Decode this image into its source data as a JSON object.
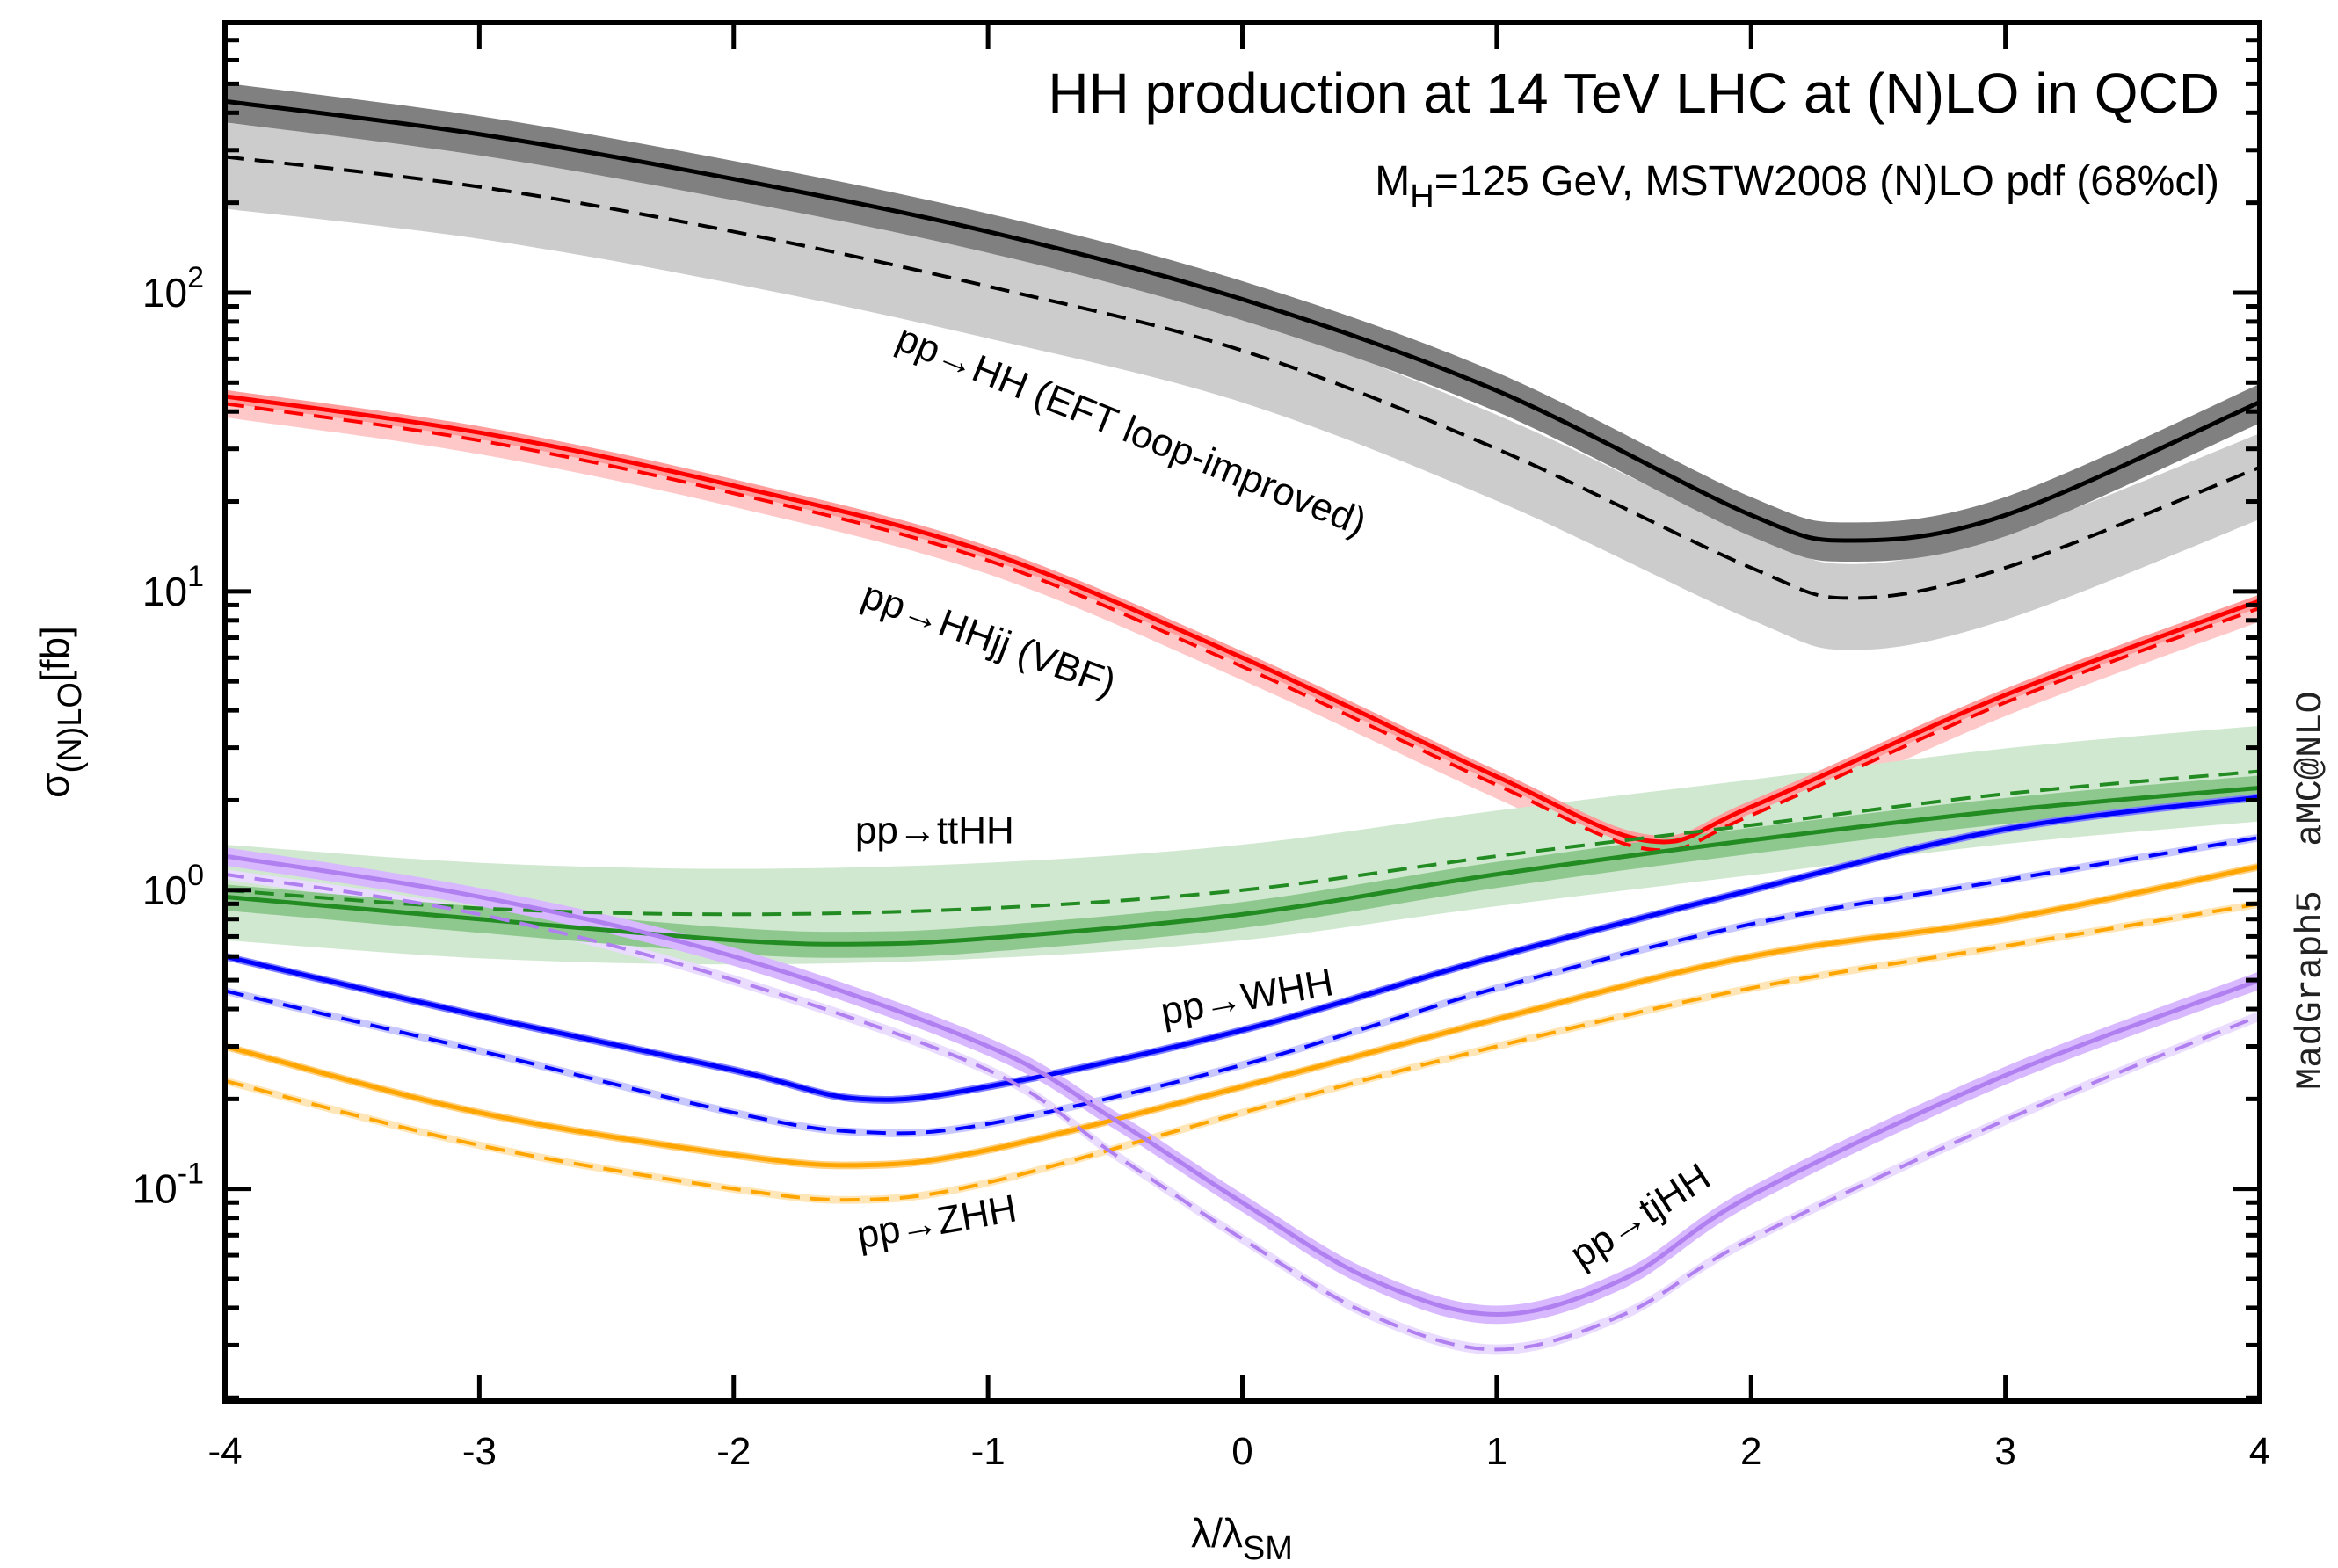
{
  "chart_data": {
    "type": "line",
    "title": "HH production at 14 TeV LHC at (N)LO in QCD",
    "subtitle": {
      "pre": "M",
      "sub": "H",
      "post": "=125 GeV, MSTW2008 (N)LO pdf (68%cl)"
    },
    "xlabel": {
      "main": "λ/λ",
      "sub": "SM"
    },
    "ylabel": {
      "main": "σ",
      "sub": "(N)LO",
      "post": "[fb]"
    },
    "watermark": "MadGraph5  aMC@NLO",
    "xlim": [
      -4,
      4
    ],
    "ylim": [
      0.0195,
      800
    ],
    "yscale": "log",
    "xticks": [
      "-4",
      "-3",
      "-2",
      "-1",
      "0",
      "1",
      "2",
      "3",
      "4"
    ],
    "yticks": [
      {
        "value": 100,
        "base": "10",
        "exp": "2"
      },
      {
        "value": 10,
        "base": "10",
        "exp": "1"
      },
      {
        "value": 1,
        "base": "10",
        "exp": "0"
      },
      {
        "value": 0.1,
        "base": "10",
        "exp": "-1"
      }
    ],
    "series": [
      {
        "name": "pp→HH NLO",
        "style": "solid",
        "color": "#000000",
        "band_color": "#808080",
        "band_rel": [
          0.15,
          0.15
        ],
        "x": [
          -4,
          -3,
          -2,
          -1,
          0,
          1,
          2,
          2.4,
          3,
          4
        ],
        "y": [
          437,
          339,
          240,
          160,
          95,
          47,
          18,
          14.8,
          18,
          43
        ]
      },
      {
        "name": "pp→HH LO",
        "style": "dashed",
        "color": "#000000",
        "band_color": "#cccccc",
        "band_rel": [
          0.33,
          0.3
        ],
        "x": [
          -4,
          -3,
          -2,
          -1,
          0,
          1,
          2,
          2.4,
          3,
          4
        ],
        "y": [
          285,
          226,
          160,
          105,
          64,
          30,
          12,
          9.5,
          12,
          26
        ]
      },
      {
        "name": "pp→HHjj NLO",
        "style": "solid",
        "color": "#ff0000",
        "band_color": "#ff9c9c",
        "band_rel": [
          0.05,
          0.05
        ],
        "x": [
          -4,
          -3,
          -2,
          -1,
          0,
          1,
          1.6,
          2,
          3,
          4
        ],
        "y": [
          45,
          34,
          22.6,
          13.5,
          6.0,
          2.4,
          1.46,
          1.9,
          4.5,
          9.3
        ]
      },
      {
        "name": "pp→HHjj LO",
        "style": "dashed",
        "color": "#ff0000",
        "band_color": "#ffc8c8",
        "band_rel": [
          0.1,
          0.1
        ],
        "x": [
          -4,
          -3,
          -2,
          -1,
          0,
          1,
          1.6,
          2,
          3,
          4
        ],
        "y": [
          42.5,
          32,
          21.3,
          12.7,
          5.6,
          2.25,
          1.37,
          1.78,
          4.25,
          8.8
        ]
      },
      {
        "name": "pp→ttHH LO",
        "style": "dashed",
        "color": "#228b22",
        "band_color": "#d0e8d0",
        "band_rel": [
          0.32,
          0.42
        ],
        "x": [
          -4,
          -3,
          -2,
          -1,
          0,
          1,
          2,
          3,
          4
        ],
        "y": [
          1.0,
          0.87,
          0.83,
          0.87,
          1.0,
          1.3,
          1.65,
          2.1,
          2.5
        ]
      },
      {
        "name": "pp→ttHH NLO",
        "style": "solid",
        "color": "#228b22",
        "band_color": "#8fc88f",
        "band_rel": [
          0.1,
          0.1
        ],
        "x": [
          -4,
          -3,
          -2,
          -1.5,
          -1,
          0,
          1,
          2,
          3,
          4
        ],
        "y": [
          0.95,
          0.8,
          0.68,
          0.66,
          0.69,
          0.83,
          1.13,
          1.47,
          1.85,
          2.2
        ]
      },
      {
        "name": "pp→WHH NLO",
        "style": "solid",
        "color": "#0000ff",
        "band_color": "#8080ff",
        "band_rel": [
          0.03,
          0.03
        ],
        "x": [
          -4,
          -3,
          -2,
          -1.5,
          -1,
          0,
          1,
          2,
          3,
          4
        ],
        "y": [
          0.6,
          0.38,
          0.25,
          0.2,
          0.22,
          0.34,
          0.6,
          1.0,
          1.6,
          2.05
        ]
      },
      {
        "name": "pp→WHH LO",
        "style": "dashed",
        "color": "#0000ff",
        "band_color": "#c8c8ff",
        "band_rel": [
          0.03,
          0.03
        ],
        "x": [
          -4,
          -3,
          -2,
          -1.5,
          -1,
          0,
          1,
          2,
          3,
          4
        ],
        "y": [
          0.46,
          0.29,
          0.18,
          0.155,
          0.165,
          0.26,
          0.47,
          0.77,
          1.08,
          1.5
        ]
      },
      {
        "name": "pp→ZHH NLO",
        "style": "solid",
        "color": "#ffa500",
        "band_color": "#ffd080",
        "band_rel": [
          0.03,
          0.03
        ],
        "x": [
          -4,
          -3,
          -2,
          -1.5,
          -1,
          0,
          1,
          2,
          3,
          4
        ],
        "y": [
          0.3,
          0.18,
          0.13,
          0.12,
          0.135,
          0.22,
          0.37,
          0.6,
          0.8,
          1.2
        ]
      },
      {
        "name": "pp→ZHH LO",
        "style": "dashed",
        "color": "#ffa500",
        "band_color": "#ffe6b8",
        "band_rel": [
          0.03,
          0.03
        ],
        "x": [
          -4,
          -3,
          -2,
          -1.5,
          -1,
          0,
          1,
          2,
          3,
          4
        ],
        "y": [
          0.23,
          0.14,
          0.1,
          0.092,
          0.105,
          0.18,
          0.3,
          0.47,
          0.65,
          0.9
        ]
      },
      {
        "name": "pp→tjHH NLO",
        "style": "solid",
        "color": "#b080f0",
        "band_color": "#d8b8ff",
        "band_rel": [
          0.07,
          0.07
        ],
        "x": [
          -4,
          -3,
          -2,
          -1,
          -0.5,
          0,
          0.5,
          1,
          1.5,
          2,
          3,
          4
        ],
        "y": [
          1.3,
          0.95,
          0.6,
          0.3,
          0.17,
          0.09,
          0.05,
          0.038,
          0.05,
          0.095,
          0.24,
          0.5
        ]
      },
      {
        "name": "pp→tjHH LO",
        "style": "dashed",
        "color": "#b080f0",
        "band_color": "#eadcff",
        "band_rel": [
          0.04,
          0.04
        ],
        "x": [
          -4,
          -3,
          -2,
          -1,
          -0.5,
          0,
          0.5,
          1,
          1.5,
          2,
          3,
          4
        ],
        "y": [
          1.13,
          0.83,
          0.5,
          0.25,
          0.13,
          0.068,
          0.038,
          0.029,
          0.038,
          0.068,
          0.17,
          0.38
        ]
      }
    ],
    "annotations": [
      {
        "text": "pp→HH (EFT loop-improved)",
        "x": -0.44,
        "y": 34
      },
      {
        "text": "pp→HHjj (VBF)",
        "x": -1.0,
        "y": 6.8
      },
      {
        "text": "pp→ttHH",
        "x": -1.21,
        "y": 1.55
      },
      {
        "text": "pp→WHH",
        "x": 0.02,
        "y": 0.43
      },
      {
        "text": "pp→ZHH",
        "x": -1.2,
        "y": 0.076
      },
      {
        "text": "pp→tjHH",
        "x": 1.57,
        "y": 0.08
      }
    ]
  }
}
